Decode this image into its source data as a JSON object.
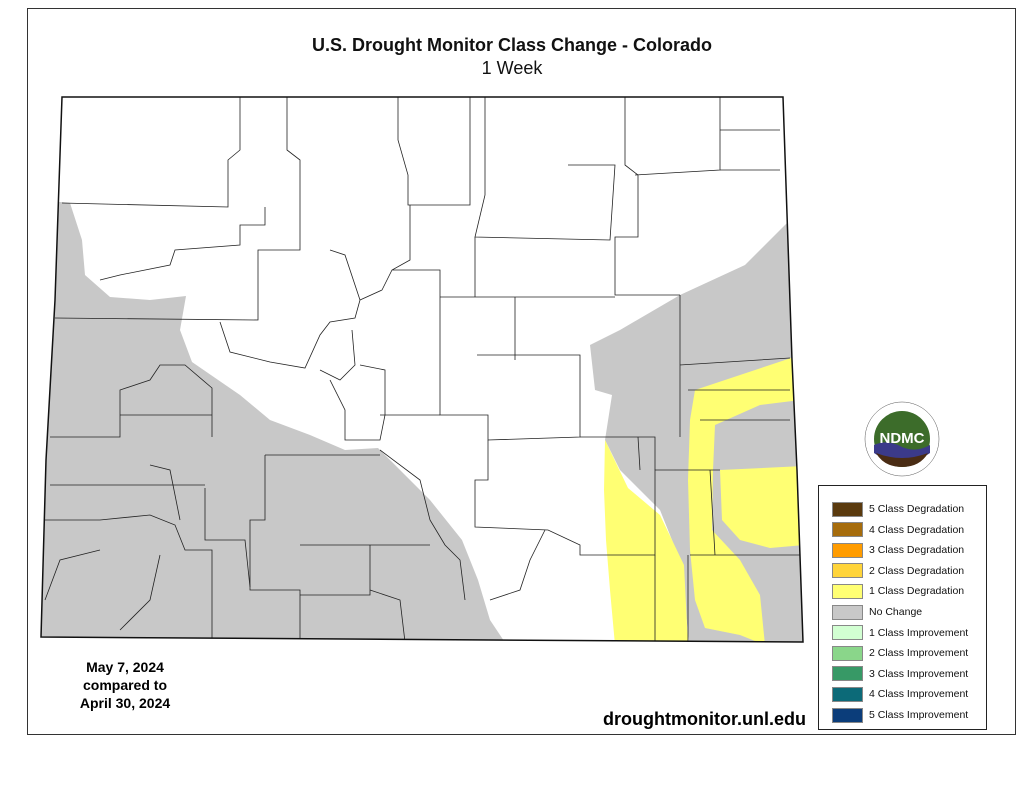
{
  "title": "U.S. Drought Monitor Class Change - Colorado",
  "subtitle": "1 Week",
  "dates": {
    "current": "May 7, 2024",
    "compared": "compared to",
    "previous": "April 30, 2024"
  },
  "url": "droughtmonitor.unl.edu",
  "logo": {
    "text": "NDMC",
    "ring_top": "NATIONAL DROUGHT MITIGATION CENTER",
    "ring_bottom": "UNIVERSITY OF NEBRASKA"
  },
  "legend": [
    {
      "label": "5 Class Degradation",
      "color": "#5a3a0e"
    },
    {
      "label": "4 Class Degradation",
      "color": "#a66c0c"
    },
    {
      "label": "3 Class Degradation",
      "color": "#ff9c00"
    },
    {
      "label": "2 Class Degradation",
      "color": "#ffd43a"
    },
    {
      "label": "1 Class Degradation",
      "color": "#ffff73"
    },
    {
      "label": "No Change",
      "color": "#c8c8c8"
    },
    {
      "label": "1 Class Improvement",
      "color": "#d2ffd2"
    },
    {
      "label": "2 Class Improvement",
      "color": "#8ad68a"
    },
    {
      "label": "3 Class Improvement",
      "color": "#379966"
    },
    {
      "label": "4 Class Improvement",
      "color": "#0c6a78"
    },
    {
      "label": "5 Class Improvement",
      "color": "#0b3d7a"
    }
  ],
  "map_colors": {
    "no_change": "#c8c8c8",
    "degradation_1": "#ffff73",
    "unchanged_white": "#ffffff"
  }
}
